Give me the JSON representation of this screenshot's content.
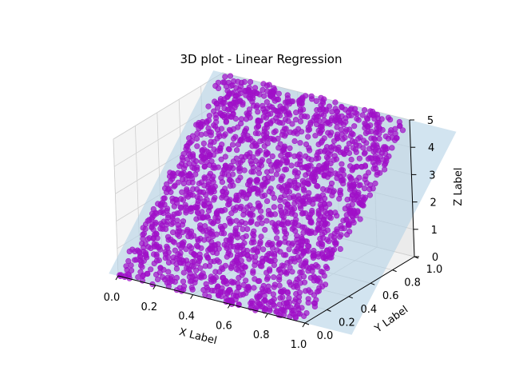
{
  "chart_data": {
    "type": "scatter3d",
    "title": "3D plot - Linear Regression",
    "xlabel": "X Label",
    "ylabel": "Y Label",
    "zlabel": "Z Label",
    "xlim": [
      0.0,
      1.0
    ],
    "ylim": [
      0.0,
      1.0
    ],
    "zlim": [
      0,
      5
    ],
    "x_ticks": [
      "0.0",
      "0.2",
      "0.4",
      "0.6",
      "0.8",
      "1.0"
    ],
    "y_ticks": [
      "0.0",
      "0.2",
      "0.4",
      "0.6",
      "0.8",
      "1.0"
    ],
    "z_ticks": [
      "0",
      "1",
      "2",
      "3",
      "4",
      "5"
    ],
    "grid": true,
    "points": {
      "color": "#a010c8",
      "approx_count": 2000,
      "model": "z ≈ 5·y (uniform x, y in [0,1])"
    },
    "regression_plane": {
      "color": "#b4d2e6",
      "z_at_y0": 0.0,
      "z_at_y1": 5.0
    }
  }
}
